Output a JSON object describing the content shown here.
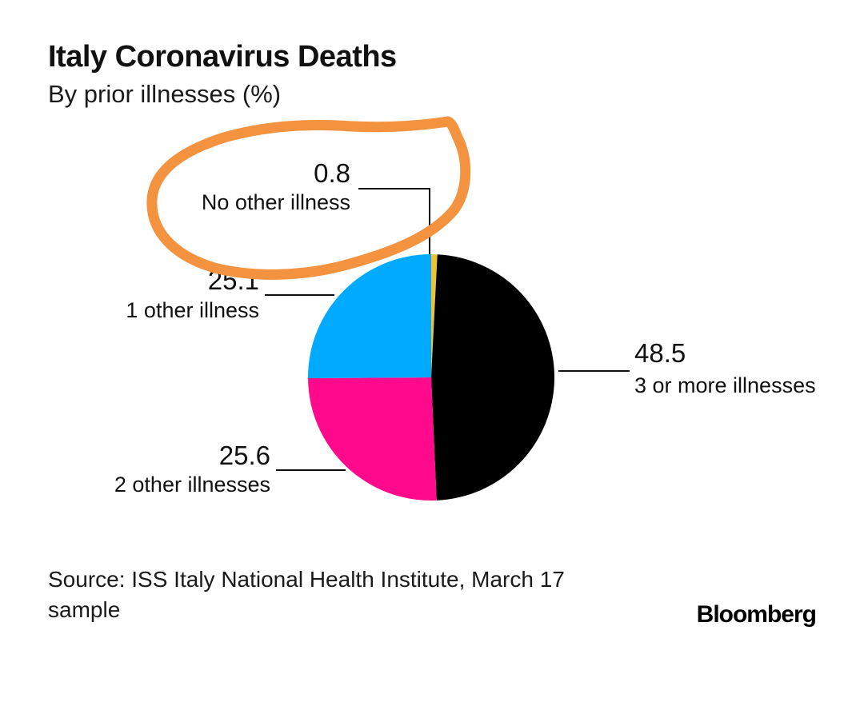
{
  "chart_data": {
    "type": "pie",
    "title": "Italy Coronavirus Deaths",
    "subtitle": "By prior illnesses (%)",
    "slices": [
      {
        "label": "No other illness",
        "value": 0.8,
        "value_text": "0.8",
        "color": "#f2c12e"
      },
      {
        "label": "3 or more illnesses",
        "value": 48.5,
        "value_text": "48.5",
        "color": "#000000"
      },
      {
        "label": "2 other illnesses",
        "value": 25.6,
        "value_text": "25.6",
        "color": "#ff0a8d"
      },
      {
        "label": "1 other illness",
        "value": 25.1,
        "value_text": "25.1",
        "color": "#00aaff"
      }
    ]
  },
  "annotation": {
    "type": "hand-drawn circle",
    "color": "#f3923f",
    "highlights": "No other illness"
  },
  "footer": {
    "source": "Source: ISS Italy National Health Institute, March 17 sample",
    "brand": "Bloomberg"
  }
}
